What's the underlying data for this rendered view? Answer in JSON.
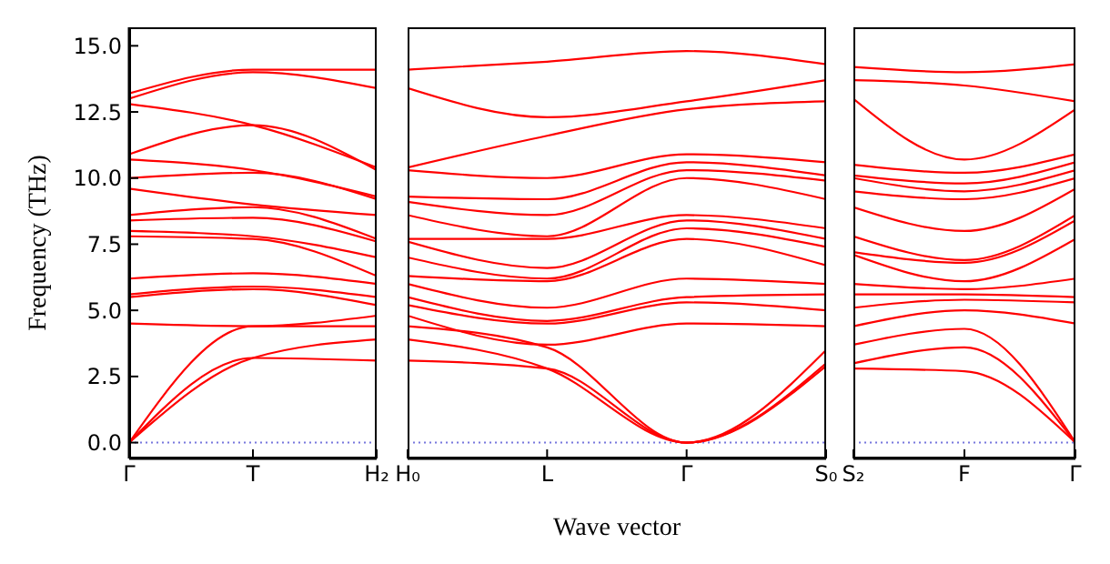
{
  "chart_data": [
    {
      "type": "line",
      "ylabel": "Frequency (THz)",
      "categories": [
        "Γ",
        "T",
        "H₂"
      ],
      "ylim": [
        -0.6,
        15.7
      ],
      "yticks": [
        {
          "value": 0,
          "label": "0.0"
        },
        2.5,
        {
          "value": 5,
          "label": "5.0"
        },
        7.5,
        {
          "value": 10,
          "label": "10.0"
        },
        12.5,
        {
          "value": 15,
          "label": "15.0"
        }
      ],
      "ref_lines": [
        {
          "axis": "y",
          "value": 0,
          "color": "#7777dd",
          "line_style": "dotted"
        }
      ],
      "series": [
        {
          "color": "#ff0000",
          "values": [
            0,
            3.2,
            3.1
          ]
        },
        {
          "color": "#ff0000",
          "values": [
            0,
            3.2,
            3.9
          ]
        },
        {
          "color": "#ff0000",
          "values": [
            0,
            4.4,
            4.4
          ]
        },
        {
          "color": "#ff0000",
          "values": [
            4.5,
            4.4,
            4.8
          ]
        },
        {
          "color": "#ff0000",
          "values": [
            5.5,
            5.8,
            5.2
          ]
        },
        {
          "color": "#ff0000",
          "values": [
            5.6,
            5.9,
            5.5
          ]
        },
        {
          "color": "#ff0000",
          "values": [
            6.2,
            6.4,
            6.0
          ]
        },
        {
          "color": "#ff0000",
          "values": [
            7.8,
            7.7,
            6.3
          ]
        },
        {
          "color": "#ff0000",
          "values": [
            8.0,
            7.8,
            7.0
          ]
        },
        {
          "color": "#ff0000",
          "values": [
            8.4,
            8.5,
            7.6
          ]
        },
        {
          "color": "#ff0000",
          "values": [
            8.6,
            8.9,
            7.7
          ]
        },
        {
          "color": "#ff0000",
          "values": [
            9.6,
            9.0,
            8.6
          ]
        },
        {
          "color": "#ff0000",
          "values": [
            10.0,
            10.2,
            9.2
          ]
        },
        {
          "color": "#ff0000",
          "values": [
            10.7,
            10.3,
            9.3
          ]
        },
        {
          "color": "#ff0000",
          "values": [
            10.9,
            12.0,
            10.3
          ]
        },
        {
          "color": "#ff0000",
          "values": [
            12.8,
            12.0,
            10.4
          ]
        },
        {
          "color": "#ff0000",
          "values": [
            13.0,
            14.0,
            13.4
          ]
        },
        {
          "color": "#ff0000",
          "values": [
            13.2,
            14.1,
            14.1
          ]
        }
      ]
    },
    {
      "type": "line",
      "xlabel": "Wave vector",
      "tick_labels": "x",
      "categories": [
        "H₀",
        "L",
        "Γ",
        "S₀"
      ],
      "ylim": [
        -0.6,
        15.7
      ],
      "yticks": [
        0,
        2.5,
        5,
        7.5,
        10,
        12.5,
        15
      ],
      "ref_lines": [
        {
          "axis": "y",
          "value": 0,
          "color": "#7777dd",
          "line_style": "dotted"
        }
      ],
      "series": [
        {
          "color": "#ff0000",
          "values": [
            3.1,
            2.8,
            0,
            2.9
          ]
        },
        {
          "color": "#ff0000",
          "values": [
            3.9,
            2.8,
            0,
            3.0
          ]
        },
        {
          "color": "#ff0000",
          "values": [
            4.4,
            3.6,
            0,
            3.5
          ]
        },
        {
          "color": "#ff0000",
          "values": [
            4.8,
            3.7,
            4.5,
            4.4
          ]
        },
        {
          "color": "#ff0000",
          "values": [
            5.2,
            4.5,
            5.3,
            5.0
          ]
        },
        {
          "color": "#ff0000",
          "values": [
            5.5,
            4.6,
            5.5,
            5.6
          ]
        },
        {
          "color": "#ff0000",
          "values": [
            6.0,
            5.1,
            6.2,
            6.0
          ]
        },
        {
          "color": "#ff0000",
          "values": [
            6.3,
            6.1,
            7.7,
            6.7
          ]
        },
        {
          "color": "#ff0000",
          "values": [
            7.0,
            6.2,
            8.1,
            7.4
          ]
        },
        {
          "color": "#ff0000",
          "values": [
            7.6,
            6.6,
            8.4,
            7.7
          ]
        },
        {
          "color": "#ff0000",
          "values": [
            7.7,
            7.7,
            8.6,
            8.1
          ]
        },
        {
          "color": "#ff0000",
          "values": [
            8.6,
            7.8,
            10.0,
            9.2
          ]
        },
        {
          "color": "#ff0000",
          "values": [
            9.1,
            8.6,
            10.3,
            9.9
          ]
        },
        {
          "color": "#ff0000",
          "values": [
            9.3,
            9.2,
            10.6,
            10.1
          ]
        },
        {
          "color": "#ff0000",
          "values": [
            10.3,
            10.0,
            10.9,
            10.6
          ]
        },
        {
          "color": "#ff0000",
          "values": [
            10.4,
            11.6,
            12.6,
            12.9
          ]
        },
        {
          "color": "#ff0000",
          "values": [
            13.4,
            12.3,
            12.9,
            13.7
          ]
        },
        {
          "color": "#ff0000",
          "values": [
            14.1,
            14.4,
            14.8,
            14.3
          ]
        }
      ]
    },
    {
      "type": "line",
      "tick_labels": "x",
      "categories": [
        "S₂",
        "F",
        "Γ"
      ],
      "ylim": [
        -0.6,
        15.7
      ],
      "yticks": [
        0,
        2.5,
        5,
        7.5,
        10,
        12.5,
        15
      ],
      "ref_lines": [
        {
          "axis": "y",
          "value": 0,
          "color": "#7777dd",
          "line_style": "dotted"
        }
      ],
      "series": [
        {
          "color": "#ff0000",
          "values": [
            2.8,
            2.7,
            0
          ]
        },
        {
          "color": "#ff0000",
          "values": [
            3.0,
            3.6,
            0
          ]
        },
        {
          "color": "#ff0000",
          "values": [
            3.7,
            4.3,
            0
          ]
        },
        {
          "color": "#ff0000",
          "values": [
            4.4,
            5.0,
            4.5
          ]
        },
        {
          "color": "#ff0000",
          "values": [
            5.1,
            5.4,
            5.3
          ]
        },
        {
          "color": "#ff0000",
          "values": [
            5.6,
            5.6,
            5.5
          ]
        },
        {
          "color": "#ff0000",
          "values": [
            6.0,
            5.8,
            6.2
          ]
        },
        {
          "color": "#ff0000",
          "values": [
            7.1,
            6.1,
            7.7
          ]
        },
        {
          "color": "#ff0000",
          "values": [
            7.2,
            6.8,
            8.4
          ]
        },
        {
          "color": "#ff0000",
          "values": [
            7.8,
            6.9,
            8.6
          ]
        },
        {
          "color": "#ff0000",
          "values": [
            8.9,
            8.0,
            9.6
          ]
        },
        {
          "color": "#ff0000",
          "values": [
            9.5,
            9.2,
            10.0
          ]
        },
        {
          "color": "#ff0000",
          "values": [
            10.0,
            9.5,
            10.3
          ]
        },
        {
          "color": "#ff0000",
          "values": [
            10.1,
            9.8,
            10.6
          ]
        },
        {
          "color": "#ff0000",
          "values": [
            10.5,
            10.2,
            10.9
          ]
        },
        {
          "color": "#ff0000",
          "values": [
            13.0,
            10.7,
            12.6
          ]
        },
        {
          "color": "#ff0000",
          "values": [
            13.7,
            13.5,
            12.9
          ]
        },
        {
          "color": "#ff0000",
          "values": [
            14.2,
            14.0,
            14.3
          ]
        }
      ]
    }
  ]
}
